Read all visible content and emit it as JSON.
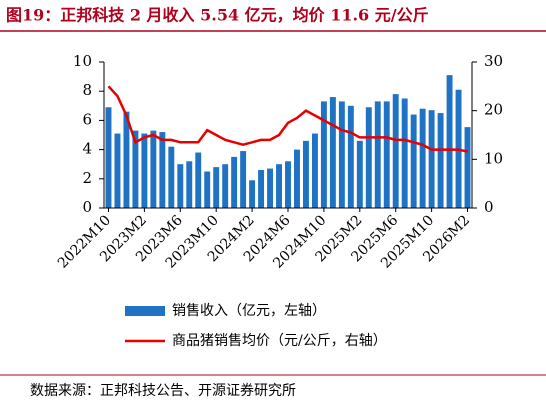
{
  "chart_data": {
    "type": "bar_line",
    "title": "图19：正邦科技 2 月收入 5.54 亿元，均价 11.6 元/公斤",
    "categories": [
      "2022M10",
      null,
      null,
      null,
      "2023M2",
      null,
      null,
      null,
      "2023M6",
      null,
      null,
      null,
      "2023M10",
      null,
      null,
      null,
      "2024M2",
      null,
      null,
      null,
      "2024M6",
      null,
      null,
      null,
      "2024M10",
      null,
      null,
      null,
      "2025M2",
      null,
      null,
      null,
      "2025M6",
      null,
      null,
      null,
      "2025M10",
      null,
      null,
      null,
      "2026M2"
    ],
    "series": [
      {
        "name": "销售收入（亿元，左轴）",
        "type": "bar",
        "color": "#1f72c4",
        "values": [
          6.9,
          5.1,
          6.6,
          5.3,
          5.1,
          5.3,
          5.2,
          4.2,
          3.0,
          3.2,
          3.8,
          2.5,
          2.8,
          3.0,
          3.5,
          3.9,
          1.9,
          2.6,
          2.7,
          3.0,
          3.2,
          4.0,
          4.6,
          5.1,
          7.3,
          7.6,
          7.3,
          7.0,
          4.6,
          6.9,
          7.3,
          7.3,
          7.8,
          7.5,
          6.4,
          6.8,
          6.7,
          6.5,
          9.1,
          8.1,
          5.54
        ]
      },
      {
        "name": "商品猪销售均价（元/公斤，右轴）",
        "type": "line",
        "axis": "y2",
        "color": "#e60000",
        "values": [
          25,
          23,
          19,
          13.5,
          14.5,
          15,
          14,
          14,
          13.5,
          13.5,
          13.5,
          16,
          15,
          14,
          13.5,
          13,
          13.5,
          14,
          14,
          15,
          17.5,
          18.5,
          20,
          19,
          18,
          17,
          16,
          15.5,
          14.5,
          14.5,
          14.5,
          14.5,
          14,
          14,
          13.5,
          13,
          12,
          12,
          12,
          12,
          11.6
        ]
      }
    ],
    "ylim": [
      0,
      10
    ],
    "yticks": [
      0,
      2,
      4,
      6,
      8,
      10
    ],
    "y2lim": [
      0,
      30
    ],
    "y2ticks": [
      0,
      10,
      20,
      30
    ],
    "source": "数据来源：正邦科技公告、开源证券研究所"
  }
}
